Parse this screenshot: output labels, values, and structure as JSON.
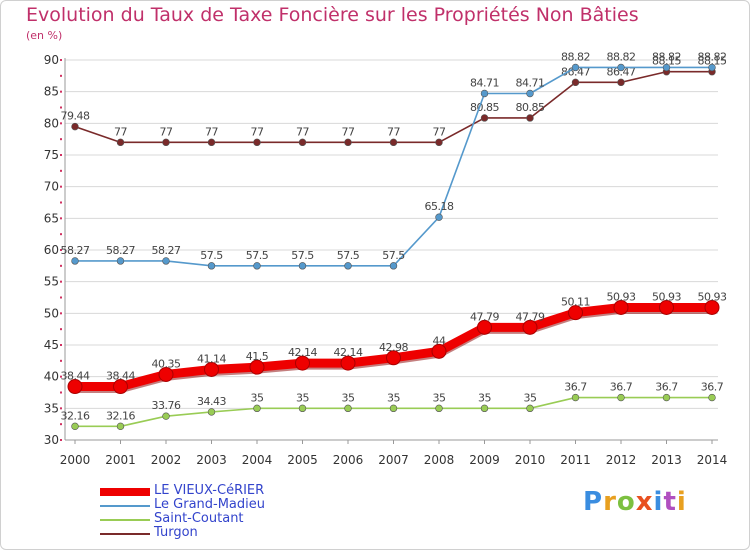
{
  "title": "Evolution du Taux de Taxe Foncière sur les Propriétés Non Bâties",
  "unit_label": "(en %)",
  "brand": "Proxiti",
  "brand_colors": [
    "#3a8de0",
    "#e8a020",
    "#7cc040",
    "#e85020",
    "#3a8de0",
    "#b050c0",
    "#e8a020"
  ],
  "chart_data": {
    "type": "line",
    "title": "Evolution du Taux de Taxe Foncière sur les Propriétés Non Bâties",
    "ylabel": "(en %)",
    "xlabel": "",
    "ylim": [
      30,
      90
    ],
    "yticks": [
      30,
      35,
      40,
      45,
      50,
      55,
      60,
      65,
      70,
      75,
      80,
      85,
      90
    ],
    "grid": "horizontal",
    "legend_position": "bottom-left",
    "categories": [
      "2000",
      "2001",
      "2002",
      "2003",
      "2004",
      "2005",
      "2006",
      "2007",
      "2008",
      "2009",
      "2010",
      "2011",
      "2012",
      "2013",
      "2014"
    ],
    "series": [
      {
        "name": "LE VIEUX-CéRIER",
        "color": "#ee0000",
        "emphasis": true,
        "values": [
          38.44,
          38.44,
          40.35,
          41.14,
          41.5,
          42.14,
          42.14,
          42.98,
          44,
          47.79,
          47.79,
          50.11,
          50.93,
          50.93,
          50.93
        ],
        "labels": [
          "38.44",
          "38.44",
          "40.35",
          "41.14",
          "41.5",
          "42.14",
          "42.14",
          "42.98",
          "44",
          "47.79",
          "47.79",
          "50.11",
          "50.93",
          "50.93",
          "50.93"
        ]
      },
      {
        "name": "Le Grand-Madieu",
        "color": "#5599cc",
        "values": [
          58.27,
          58.27,
          58.27,
          57.5,
          57.5,
          57.5,
          57.5,
          57.5,
          65.18,
          84.71,
          84.71,
          88.82,
          88.82,
          88.82,
          88.82
        ],
        "labels": [
          "58.27",
          "58.27",
          "58.27",
          "57.5",
          "57.5",
          "57.5",
          "57.5",
          "57.5",
          "65.18",
          "84.71",
          "84.71",
          "88.82",
          "88.82",
          "88.82",
          "88.82"
        ]
      },
      {
        "name": "Saint-Coutant",
        "color": "#99cc55",
        "values": [
          32.16,
          32.16,
          33.76,
          34.43,
          35,
          35,
          35,
          35,
          35,
          35,
          35,
          36.7,
          36.7,
          36.7,
          36.7
        ],
        "labels": [
          "32.16",
          "32.16",
          "33.76",
          "34.43",
          "35",
          "35",
          "35",
          "35",
          "35",
          "35",
          "35",
          "36.7",
          "36.7",
          "36.7",
          "36.7"
        ]
      },
      {
        "name": "Turgon",
        "color": "#7a2a2a",
        "values": [
          79.48,
          77,
          77,
          77,
          77,
          77,
          77,
          77,
          77,
          80.85,
          80.85,
          86.47,
          86.47,
          88.15,
          88.15
        ],
        "labels": [
          "79.48",
          "77",
          "77",
          "77",
          "77",
          "77",
          "77",
          "77",
          "77",
          "80.85",
          "80.85",
          "86.47",
          "86.47",
          "88.15",
          "88.15"
        ]
      }
    ]
  }
}
